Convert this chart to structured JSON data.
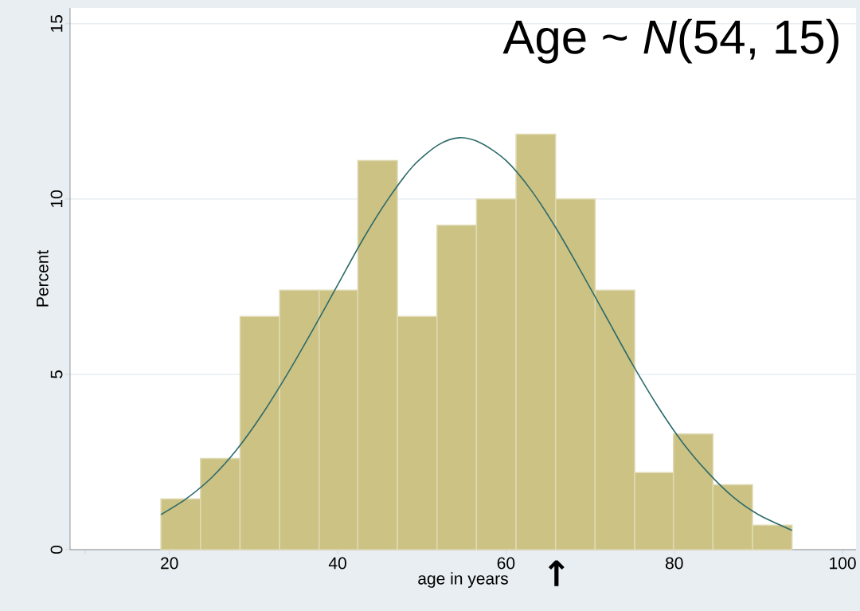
{
  "chart_data": {
    "type": "histogram",
    "xlabel": "age in years",
    "ylabel": "Percent",
    "bins": [
      19,
      23.7,
      28.4,
      33.1,
      37.8,
      42.4,
      47.1,
      51.8,
      56.5,
      61.2,
      65.9,
      70.6,
      75.3,
      79.9,
      84.6,
      89.3,
      94
    ],
    "values": [
      1.45,
      2.6,
      6.65,
      7.4,
      7.4,
      11.1,
      6.65,
      9.25,
      10,
      11.85,
      10,
      7.4,
      2.2,
      3.3,
      1.85,
      0.7
    ],
    "color": "#cbc283",
    "series": [
      {
        "type": "line",
        "color": "#2f6b6b",
        "x": [
          19,
          22,
          25,
          28,
          31,
          34,
          37,
          40,
          43,
          46,
          49,
          52,
          54.5,
          57,
          60,
          63,
          66,
          69,
          72,
          75,
          78,
          81,
          84,
          87,
          90,
          94
        ],
        "values": [
          1.0,
          1.45,
          2.05,
          2.85,
          3.85,
          5.0,
          6.25,
          7.55,
          8.85,
          10.0,
          10.95,
          11.55,
          11.75,
          11.6,
          11.1,
          10.25,
          9.15,
          7.9,
          6.6,
          5.3,
          4.1,
          3.05,
          2.2,
          1.5,
          1.0,
          0.55
        ]
      }
    ],
    "annotations": [
      "Age ~ *N*(54, 15)",
      {
        "text": "↑",
        "x": 66,
        "y": 0
      }
    ],
    "xlim": [
      8.2,
      101.6
    ],
    "ylim": [
      0,
      15.45
    ],
    "xticks": [
      {
        "value": 10,
        "label": null
      },
      20,
      40,
      60,
      80,
      100
    ],
    "yticks": [
      0,
      5,
      10,
      15
    ],
    "grid": "y"
  }
}
